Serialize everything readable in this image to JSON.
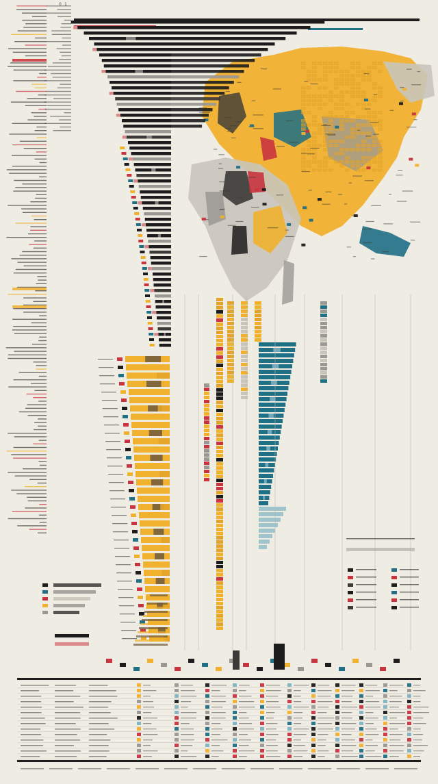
{
  "colors": {
    "background": "#efece3",
    "black": "#1c1c1c",
    "charcoal": "#3b3a37",
    "gray": "#9a9893",
    "lightgray": "#c9c5bb",
    "yellow": "#f0b12e",
    "gold": "#e2a42a",
    "brown": "#6e5a3c",
    "teal": "#1f6f85",
    "lightteal": "#7fb3c2",
    "red": "#c8343f",
    "pink": "#d98a8a"
  },
  "chart_data": {
    "type": "bar",
    "title": "",
    "xlabel": "",
    "ylabel": "",
    "axis_ticks": [
      "0",
      "1"
    ],
    "legend_position": "bottom-right",
    "grid": false,
    "series": [
      {
        "values": [
          390,
          365,
          340,
          320,
          300,
          290,
          280,
          270,
          262,
          255,
          248,
          240,
          232,
          225,
          218,
          212,
          205,
          198,
          192,
          186,
          180,
          174,
          168,
          162,
          156,
          150,
          145,
          140,
          135,
          130,
          126,
          122,
          118,
          114,
          110,
          106,
          102,
          99,
          96,
          93,
          90,
          87,
          84,
          81,
          78,
          75,
          72,
          70,
          68,
          66,
          64,
          62,
          60,
          58,
          56,
          54,
          52,
          50,
          48,
          46
        ]
      },
      {
        "values": [
          65,
          64,
          63,
          62,
          60,
          59,
          58,
          57,
          56,
          55,
          54,
          53,
          52,
          51,
          50,
          49,
          48,
          47,
          46,
          45,
          44,
          43,
          42,
          41,
          40,
          39,
          38,
          37,
          36,
          35,
          34,
          33,
          32,
          31,
          30
        ]
      },
      {
        "values": [
          78,
          76,
          74,
          72,
          70,
          68,
          66,
          64,
          62,
          60,
          58,
          56,
          54,
          52,
          50,
          48,
          46,
          44,
          42,
          40,
          38,
          36,
          34,
          32,
          30,
          28,
          26,
          24,
          22,
          20
        ]
      }
    ]
  }
}
